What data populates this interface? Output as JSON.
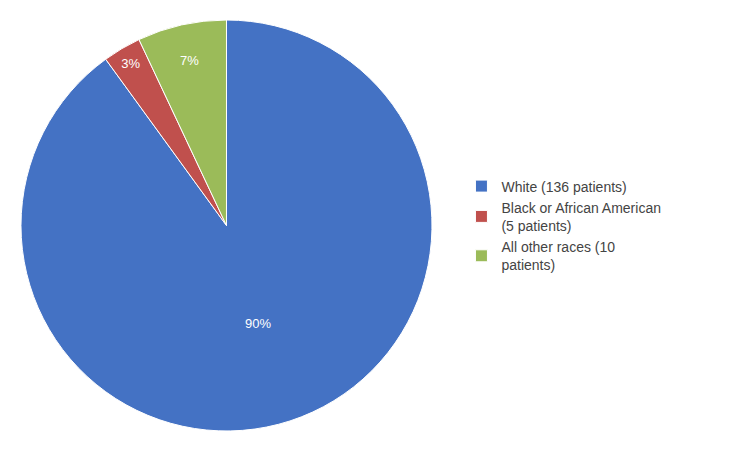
{
  "chart_data": {
    "type": "pie",
    "labels": [
      "White (136 patients)",
      "Black or African American\n(5 patients)",
      "All other races (10\npatients)"
    ],
    "values": [
      90,
      3,
      7
    ],
    "value_labels": [
      "90%",
      "3%",
      "7%"
    ],
    "colors": [
      "#4472C4",
      "#C0504D",
      "#9BBB59"
    ],
    "data_labels": true,
    "legend": "right"
  }
}
